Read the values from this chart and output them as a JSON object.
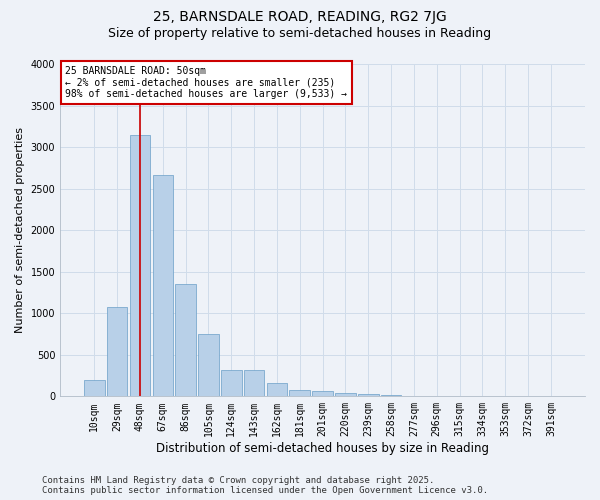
{
  "title_line1": "25, BARNSDALE ROAD, READING, RG2 7JG",
  "title_line2": "Size of property relative to semi-detached houses in Reading",
  "xlabel": "Distribution of semi-detached houses by size in Reading",
  "ylabel": "Number of semi-detached properties",
  "categories": [
    "10sqm",
    "29sqm",
    "48sqm",
    "67sqm",
    "86sqm",
    "105sqm",
    "124sqm",
    "143sqm",
    "162sqm",
    "181sqm",
    "201sqm",
    "220sqm",
    "239sqm",
    "258sqm",
    "277sqm",
    "296sqm",
    "315sqm",
    "334sqm",
    "353sqm",
    "372sqm",
    "391sqm"
  ],
  "values": [
    200,
    1080,
    3150,
    2660,
    1350,
    750,
    320,
    320,
    165,
    80,
    60,
    40,
    30,
    20,
    0,
    0,
    0,
    0,
    0,
    0,
    0
  ],
  "bar_color": "#b8d0e8",
  "bar_edge_color": "#6a9fc8",
  "grid_color": "#d0dcea",
  "bg_color": "#eef2f8",
  "red_line_x": 2.0,
  "annotation_title": "25 BARNSDALE ROAD: 50sqm",
  "annotation_line1": "← 2% of semi-detached houses are smaller (235)",
  "annotation_line2": "98% of semi-detached houses are larger (9,533) →",
  "annotation_box_color": "#ffffff",
  "annotation_border_color": "#cc0000",
  "ylim": [
    0,
    4000
  ],
  "yticks": [
    0,
    500,
    1000,
    1500,
    2000,
    2500,
    3000,
    3500,
    4000
  ],
  "footer_line1": "Contains HM Land Registry data © Crown copyright and database right 2025.",
  "footer_line2": "Contains public sector information licensed under the Open Government Licence v3.0.",
  "title1_fontsize": 10,
  "title2_fontsize": 9,
  "xlabel_fontsize": 8.5,
  "ylabel_fontsize": 8,
  "tick_fontsize": 7,
  "footer_fontsize": 6.5
}
